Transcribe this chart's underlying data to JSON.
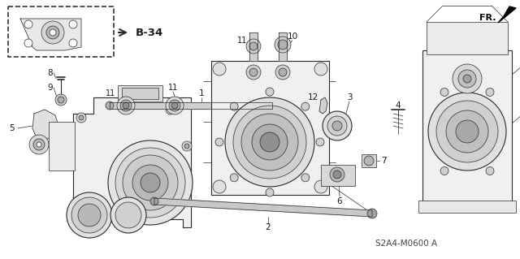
{
  "bg_color": "#ffffff",
  "line_color": "#2a2a2a",
  "label_color": "#1a1a1a",
  "part_number": "S2A4-M0600 A",
  "fr_label": "FR.",
  "b34_label": "B-34",
  "figsize": [
    6.4,
    3.19
  ],
  "dpi": 100,
  "lw_thin": 0.5,
  "lw_med": 0.8,
  "lw_thick": 1.2
}
